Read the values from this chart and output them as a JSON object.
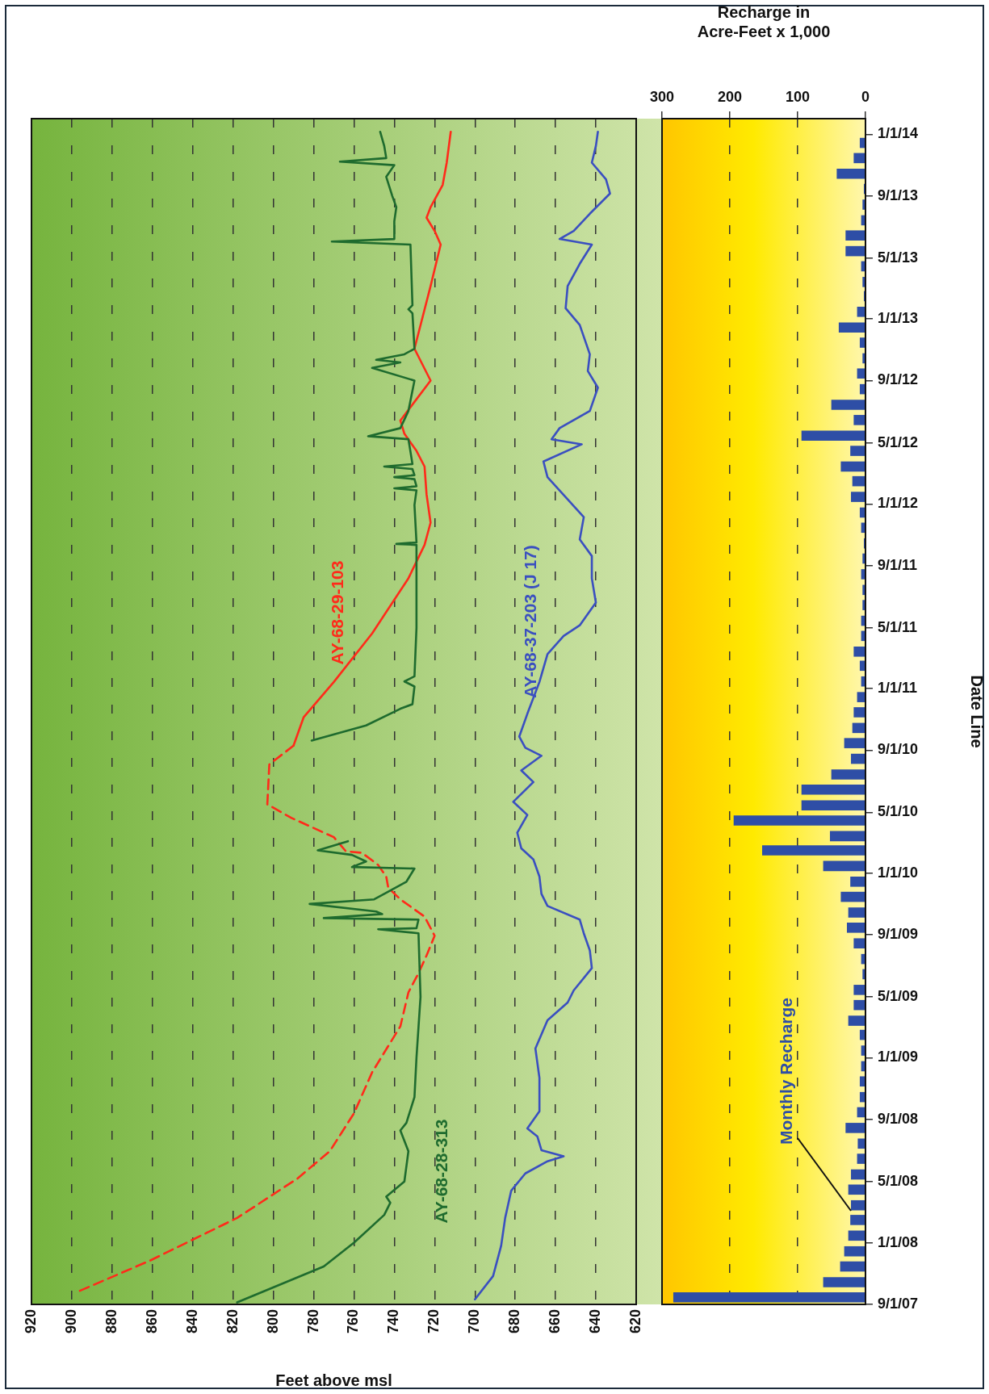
{
  "chart_data": [
    {
      "type": "line",
      "orientation": "horizontal",
      "xlabel": "Feet above msl",
      "ylim": [
        "2007-09-01",
        "2014-02-01"
      ],
      "xlim": [
        920,
        620
      ],
      "xticks": [
        920,
        900,
        880,
        860,
        840,
        820,
        800,
        780,
        760,
        740,
        720,
        700,
        680,
        660,
        640,
        620
      ],
      "grid": "x",
      "marker": "none",
      "tick_labels": "x",
      "series": [
        {
          "name": "AY-68-28-313",
          "color": "#1e6b2e",
          "x": [
            "2007-09-05",
            "2007-11-15",
            "2008-01-01",
            "2008-02-25",
            "2008-03-20",
            "2008-04-01",
            "2008-05-01",
            "2008-06-30",
            "2008-08-10",
            "2008-08-25",
            "2008-10-15",
            "2009-01-01",
            "2009-05-01",
            "2009-09-04",
            "2009-09-12",
            "2009-09-14",
            "2009-10-01",
            "2009-10-04",
            "2009-10-12",
            "2009-10-17",
            "2009-11-01",
            "2009-11-10",
            "2009-11-21",
            "2009-12-15",
            "2010-01-10",
            "2010-01-13",
            "2010-01-24",
            "2010-02-06",
            "2010-02-15",
            "2010-03-05",
            "2010-06-01",
            "2010-09-20",
            "2010-10-20",
            "2010-11-22",
            "2010-12-01",
            "2011-01-05",
            "2011-01-15",
            "2011-01-25",
            "2011-05-01",
            "2011-09-01",
            "2011-10-12",
            "2011-10-14",
            "2011-10-17",
            "2011-12-30",
            "2012-01-28",
            "2012-02-01",
            "2012-02-05",
            "2012-02-19",
            "2012-02-23",
            "2012-02-27",
            "2012-03-10",
            "2012-03-15",
            "2012-03-20",
            "2012-05-08",
            "2012-05-14",
            "2012-05-30",
            "2012-07-03",
            "2012-09-01",
            "2012-09-26",
            "2012-10-07",
            "2012-10-12",
            "2012-10-23",
            "2012-11-03",
            "2013-01-12",
            "2013-01-20",
            "2013-01-28",
            "2013-05-28",
            "2013-06-03",
            "2013-06-08",
            "2013-07-13",
            "2013-08-10",
            "2013-09-01",
            "2013-10-09",
            "2013-11-01",
            "2013-11-08",
            "2013-11-15",
            "2013-12-09",
            "2014-01-06"
          ],
          "values": [
            818,
            775,
            760,
            745,
            742,
            744,
            735,
            733,
            737,
            734,
            730,
            729,
            727,
            728,
            748,
            729,
            728,
            775,
            746,
            749,
            782,
            750,
            745,
            734,
            730,
            761,
            754,
            761,
            778,
            763,
            null,
            781,
            754,
            737,
            731,
            730,
            735,
            730,
            729,
            729,
            729,
            739,
            729,
            730,
            729,
            740,
            729,
            730,
            740,
            730,
            731,
            745,
            731,
            733,
            753,
            737,
            733,
            730,
            751,
            737,
            749,
            735,
            730,
            731,
            733,
            731,
            732,
            771,
            740,
            740,
            739,
            741,
            744,
            740,
            767,
            744,
            745,
            747
          ]
        },
        {
          "color": "#ff2a1a",
          "line_style": "dashed",
          "x": [
            "2007-09-28",
            "2007-11-27",
            "2008-02-19",
            "2008-05-07",
            "2008-06-30",
            "2008-09-13",
            "2008-12-03",
            "2009-03-04",
            "2009-05-10",
            "2009-06-17",
            "2009-07-22",
            "2009-08-30",
            "2009-10-07",
            "2009-11-10",
            "2009-12-03",
            "2009-12-25",
            "2010-01-17",
            "2010-02-10",
            "2010-02-13",
            "2010-03-13",
            "2010-04-20",
            "2010-05-17",
            "2010-08-04",
            "2010-09-10"
          ],
          "values": [
            896,
            861,
            818,
            788,
            772,
            760,
            751,
            737,
            733,
            728,
            724,
            720,
            725,
            737,
            743,
            744,
            748,
            756,
            764,
            770,
            791,
            803,
            802,
            790
          ]
        },
        {
          "name": "AY-68-29-103",
          "color": "#ff2a1a",
          "line_style": "solid",
          "x": [
            "2010-09-10",
            "2010-11-05",
            "2011-01-14",
            "2011-04-20",
            "2011-08-07",
            "2011-10-12",
            "2011-11-25",
            "2012-01-20",
            "2012-03-15",
            "2012-04-15",
            "2012-05-19",
            "2012-06-14",
            "2012-09-01",
            "2012-11-03",
            "2013-03-07",
            "2013-05-28",
            "2013-06-24",
            "2013-07-20",
            "2013-08-10",
            "2013-09-23",
            "2013-11-06",
            "2014-01-06"
          ],
          "values": [
            790,
            785,
            770,
            751,
            733,
            725,
            722,
            724,
            725,
            729,
            735,
            737,
            722,
            730,
            722,
            717,
            720,
            724,
            722,
            716,
            714,
            712
          ]
        },
        {
          "name": "AY-68-37-203 (J 17)",
          "color": "#3a4fc0",
          "x": [
            "2007-09-11",
            "2007-10-27",
            "2007-12-26",
            "2008-02-19",
            "2008-04-13",
            "2008-05-17",
            "2008-06-10",
            "2008-06-20",
            "2008-07-02",
            "2008-07-29",
            "2008-08-14",
            "2008-09-17",
            "2008-11-22",
            "2009-01-19",
            "2009-03-16",
            "2009-04-20",
            "2009-05-14",
            "2009-06-27",
            "2009-08-01",
            "2009-09-04",
            "2009-10-01",
            "2009-10-28",
            "2009-11-21",
            "2009-12-25",
            "2010-01-28",
            "2010-02-19",
            "2010-03-22",
            "2010-04-26",
            "2010-05-22",
            "2010-06-30",
            "2010-07-23",
            "2010-08-21",
            "2010-09-06",
            "2010-09-28",
            "2010-11-12",
            "2011-01-14",
            "2011-03-10",
            "2011-04-15",
            "2011-05-06",
            "2011-06-20",
            "2011-08-07",
            "2011-09-20",
            "2011-10-23",
            "2011-12-06",
            "2012-01-10",
            "2012-02-23",
            "2012-03-25",
            "2012-04-28",
            "2012-05-08",
            "2012-05-30",
            "2012-07-03",
            "2012-08-18",
            "2012-09-20",
            "2012-10-23",
            "2012-12-20",
            "2013-01-22",
            "2013-03-07",
            "2013-04-20",
            "2013-05-28",
            "2013-06-08",
            "2013-06-24",
            "2013-07-28",
            "2013-09-06",
            "2013-10-04",
            "2013-11-06",
            "2013-12-09",
            "2014-01-06"
          ],
          "values": [
            700,
            691,
            687,
            685,
            682,
            675,
            664,
            656,
            667,
            669,
            674,
            668,
            668,
            670,
            664,
            654,
            651,
            642,
            643,
            646,
            648,
            664,
            667,
            668,
            671,
            677,
            679,
            674,
            681,
            671,
            677,
            667,
            675,
            678,
            674,
            668,
            664,
            656,
            648,
            640,
            642,
            642,
            648,
            646,
            654,
            664,
            666,
            647,
            662,
            658,
            643,
            639,
            644,
            643,
            648,
            655,
            654,
            648,
            642,
            658,
            651,
            643,
            633,
            635,
            642,
            640,
            639
          ]
        }
      ]
    },
    {
      "type": "bar",
      "orientation": "horizontal",
      "xlabel": "Recharge in Acre-Feet x 1,000",
      "ylabel": "Date Line",
      "ylim": [
        "2007-09-01",
        "2014-02-01"
      ],
      "xlim": [
        300,
        0
      ],
      "xticks": [
        300,
        200,
        100,
        0
      ],
      "grid": "x",
      "color": "#2e4ea6",
      "yticks": [
        {
          "value": "2007-09-01",
          "label": "9/1/07"
        },
        {
          "value": "2008-01-01",
          "label": "1/1/08"
        },
        {
          "value": "2008-05-01",
          "label": "5/1/08"
        },
        {
          "value": "2008-09-01",
          "label": "9/1/08"
        },
        {
          "value": "2009-01-01",
          "label": "1/1/09"
        },
        {
          "value": "2009-05-01",
          "label": "5/1/09"
        },
        {
          "value": "2009-09-01",
          "label": "9/1/09"
        },
        {
          "value": "2010-01-01",
          "label": "1/1/10"
        },
        {
          "value": "2010-05-01",
          "label": "5/1/10"
        },
        {
          "value": "2010-09-01",
          "label": "9/1/10"
        },
        {
          "value": "2011-01-01",
          "label": "1/1/11"
        },
        {
          "value": "2011-05-01",
          "label": "5/1/11"
        },
        {
          "value": "2011-09-01",
          "label": "9/1/11"
        },
        {
          "value": "2012-01-01",
          "label": "1/1/12"
        },
        {
          "value": "2012-05-01",
          "label": "5/1/12"
        },
        {
          "value": "2012-09-01",
          "label": "9/1/12"
        },
        {
          "value": "2013-01-01",
          "label": "1/1/13"
        },
        {
          "value": "2013-05-01",
          "label": "5/1/13"
        },
        {
          "value": "2013-09-01",
          "label": "9/1/13"
        },
        {
          "value": "2014-01-01",
          "label": "1/1/14"
        }
      ],
      "x": [
        "2007-09-15",
        "2007-10-15",
        "2007-11-15",
        "2007-12-15",
        "2008-01-15",
        "2008-02-15",
        "2008-03-15",
        "2008-04-15",
        "2008-05-15",
        "2008-06-15",
        "2008-07-15",
        "2008-08-15",
        "2008-09-15",
        "2008-10-15",
        "2008-11-15",
        "2008-12-15",
        "2009-01-15",
        "2009-02-15",
        "2009-03-15",
        "2009-04-15",
        "2009-05-15",
        "2009-06-15",
        "2009-07-15",
        "2009-08-15",
        "2009-09-15",
        "2009-10-15",
        "2009-11-15",
        "2009-12-15",
        "2010-01-15",
        "2010-02-15",
        "2010-03-15",
        "2010-04-15",
        "2010-05-15",
        "2010-06-15",
        "2010-07-15",
        "2010-08-15",
        "2010-09-15",
        "2010-10-15",
        "2010-11-15",
        "2010-12-15",
        "2011-01-15",
        "2011-02-15",
        "2011-03-15",
        "2011-04-15",
        "2011-05-15",
        "2011-06-15",
        "2011-07-15",
        "2011-08-15",
        "2011-09-15",
        "2011-10-15",
        "2011-11-15",
        "2011-12-15",
        "2012-01-15",
        "2012-02-15",
        "2012-03-15",
        "2012-04-15",
        "2012-05-15",
        "2012-06-15",
        "2012-07-15",
        "2012-08-15",
        "2012-09-15",
        "2012-10-15",
        "2012-11-15",
        "2012-12-15",
        "2013-01-15",
        "2013-02-15",
        "2013-03-15",
        "2013-04-15",
        "2013-05-15",
        "2013-06-15",
        "2013-07-15",
        "2013-08-15",
        "2013-09-15",
        "2013-10-15",
        "2013-11-15",
        "2013-12-15"
      ],
      "values": [
        283,
        62,
        37,
        31,
        25,
        22,
        21,
        25,
        21,
        12,
        11,
        29,
        12,
        8,
        8,
        6,
        6,
        8,
        25,
        17,
        17,
        4,
        6,
        17,
        27,
        25,
        36,
        22,
        62,
        152,
        52,
        194,
        94,
        94,
        50,
        21,
        31,
        19,
        17,
        12,
        6,
        8,
        17,
        6,
        6,
        4,
        4,
        6,
        4,
        2,
        6,
        8,
        21,
        19,
        36,
        22,
        94,
        17,
        50,
        8,
        12,
        4,
        8,
        39,
        12,
        2,
        4,
        6,
        29,
        29,
        6,
        4,
        2,
        42,
        17,
        8
      ],
      "annotations": [
        "Monthly Recharge"
      ]
    }
  ]
}
